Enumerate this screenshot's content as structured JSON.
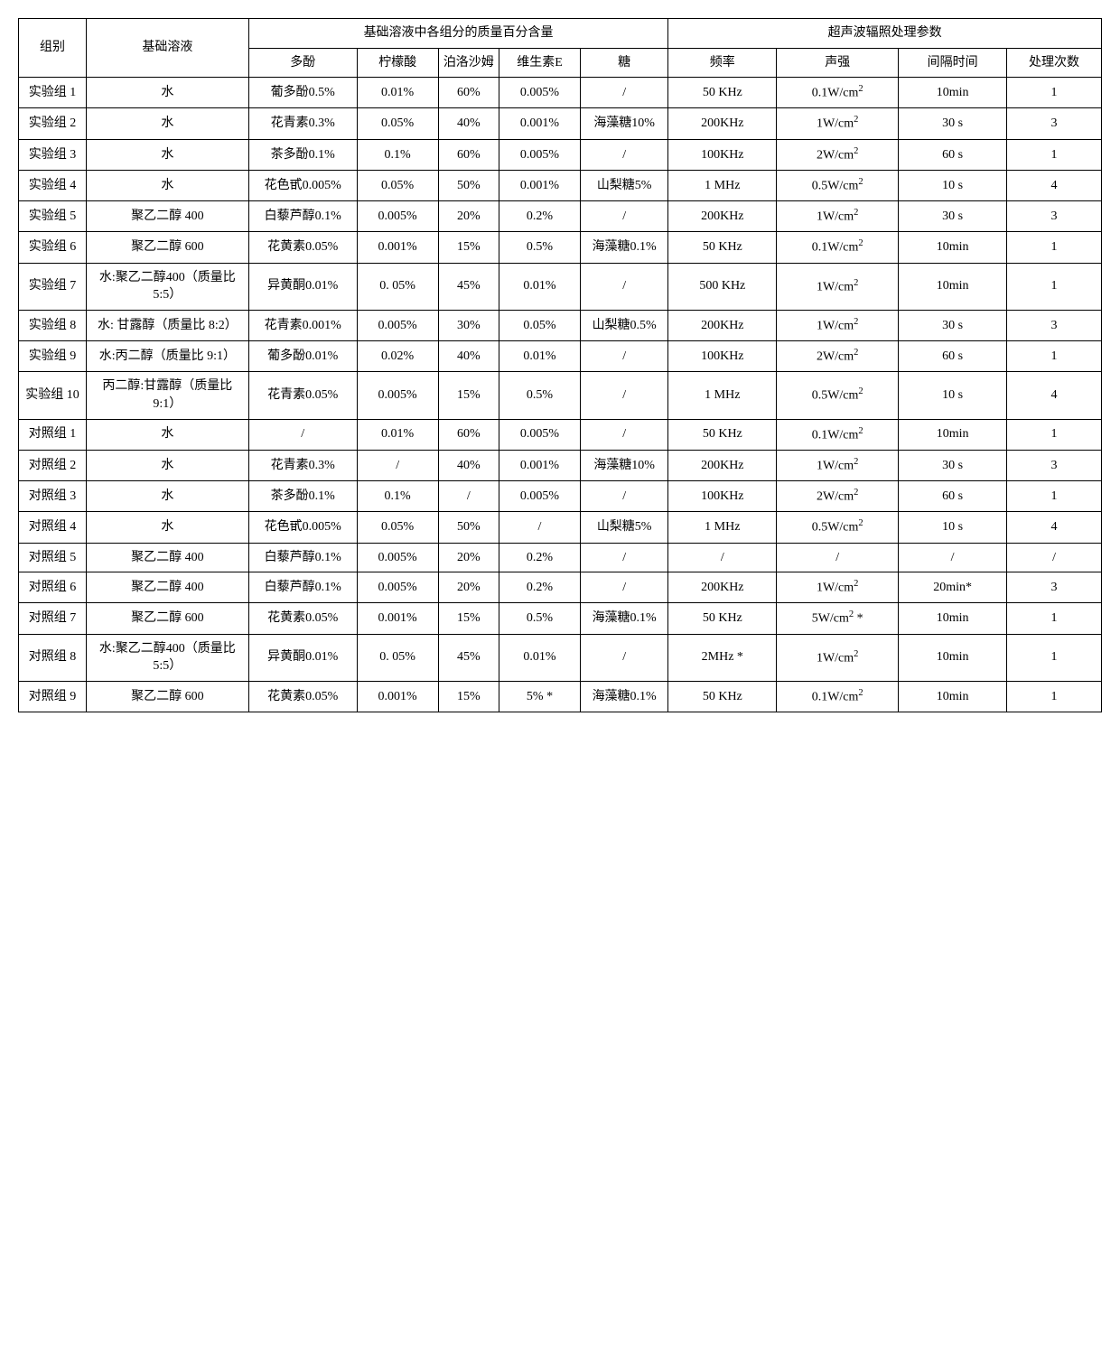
{
  "header": {
    "group": "组别",
    "base": "基础溶液",
    "composition": "基础溶液中各组分的质量百分含量",
    "ultrasonic": "超声波辐照处理参数",
    "polyphenol": "多酚",
    "citric": "柠檬酸",
    "poloxamer": "泊洛沙姆",
    "vite": "维生素E",
    "sugar": "糖",
    "freq": "频率",
    "intensity": "声强",
    "interval": "间隔时间",
    "times": "处理次数"
  },
  "rows": [
    {
      "group": "实验组 1",
      "base": "水",
      "poly": "葡多酚0.5%",
      "citric": "0.01%",
      "polo": "60%",
      "vite": "0.005%",
      "sugar": "/",
      "freq": "50 KHz",
      "intens_v": "0.1",
      "intens_s": "",
      "interval": "10min",
      "times": "1"
    },
    {
      "group": "实验组 2",
      "base": "水",
      "poly": "花青素0.3%",
      "citric": "0.05%",
      "polo": "40%",
      "vite": "0.001%",
      "sugar": "海藻糖10%",
      "freq": "200KHz",
      "intens_v": "1",
      "intens_s": "",
      "interval": "30 s",
      "times": "3"
    },
    {
      "group": "实验组 3",
      "base": "水",
      "poly": "茶多酚0.1%",
      "citric": "0.1%",
      "polo": "60%",
      "vite": "0.005%",
      "sugar": "/",
      "freq": "100KHz",
      "intens_v": "2",
      "intens_s": "",
      "interval": "60 s",
      "times": "1"
    },
    {
      "group": "实验组 4",
      "base": "水",
      "poly": "花色甙0.005%",
      "citric": "0.05%",
      "polo": "50%",
      "vite": "0.001%",
      "sugar": "山梨糖5%",
      "freq": "1 MHz",
      "intens_v": "0.5",
      "intens_s": "",
      "interval": "10 s",
      "times": "4"
    },
    {
      "group": "实验组 5",
      "base": "聚乙二醇 400",
      "poly": "白藜芦醇0.1%",
      "citric": "0.005%",
      "polo": "20%",
      "vite": "0.2%",
      "sugar": "/",
      "freq": "200KHz",
      "intens_v": "1",
      "intens_s": "",
      "interval": "30 s",
      "times": "3"
    },
    {
      "group": "实验组 6",
      "base": "聚乙二醇 600",
      "poly": "花黄素0.05%",
      "citric": "0.001%",
      "polo": "15%",
      "vite": "0.5%",
      "sugar": "海藻糖0.1%",
      "freq": "50 KHz",
      "intens_v": "0.1",
      "intens_s": "",
      "interval": "10min",
      "times": "1"
    },
    {
      "group": "实验组 7",
      "base": "水:聚乙二醇400（质量比 5:5）",
      "poly": "异黄酮0.01%",
      "citric": "0. 05%",
      "polo": "45%",
      "vite": "0.01%",
      "sugar": "/",
      "freq": "500 KHz",
      "intens_v": "1",
      "intens_s": "",
      "interval": "10min",
      "times": "1"
    },
    {
      "group": "实验组 8",
      "base": "水: 甘露醇（质量比 8:2）",
      "poly": "花青素0.001%",
      "citric": "0.005%",
      "polo": "30%",
      "vite": "0.05%",
      "sugar": "山梨糖0.5%",
      "freq": "200KHz",
      "intens_v": "1",
      "intens_s": "",
      "interval": "30 s",
      "times": "3"
    },
    {
      "group": "实验组 9",
      "base": "水:丙二醇（质量比 9:1）",
      "poly": "葡多酚0.01%",
      "citric": "0.02%",
      "polo": "40%",
      "vite": "0.01%",
      "sugar": "/",
      "freq": "100KHz",
      "intens_v": "2",
      "intens_s": "",
      "interval": "60 s",
      "times": "1"
    },
    {
      "group": "实验组 10",
      "base": "丙二醇:甘露醇（质量比 9:1）",
      "poly": "花青素0.05%",
      "citric": "0.005%",
      "polo": "15%",
      "vite": "0.5%",
      "sugar": "/",
      "freq": "1 MHz",
      "intens_v": "0.5",
      "intens_s": "",
      "interval": "10 s",
      "times": "4"
    },
    {
      "group": "对照组 1",
      "base": "水",
      "poly": "/",
      "citric": "0.01%",
      "polo": "60%",
      "vite": "0.005%",
      "sugar": "/",
      "freq": "50 KHz",
      "intens_v": "0.1",
      "intens_s": "",
      "interval": "10min",
      "times": "1"
    },
    {
      "group": "对照组 2",
      "base": "水",
      "poly": "花青素0.3%",
      "citric": "/",
      "polo": "40%",
      "vite": "0.001%",
      "sugar": "海藻糖10%",
      "freq": "200KHz",
      "intens_v": "1",
      "intens_s": "",
      "interval": "30 s",
      "times": "3"
    },
    {
      "group": "对照组 3",
      "base": "水",
      "poly": "茶多酚0.1%",
      "citric": "0.1%",
      "polo": "/",
      "vite": "0.005%",
      "sugar": "/",
      "freq": "100KHz",
      "intens_v": "2",
      "intens_s": "",
      "interval": "60 s",
      "times": "1"
    },
    {
      "group": "对照组 4",
      "base": "水",
      "poly": "花色甙0.005%",
      "citric": "0.05%",
      "polo": "50%",
      "vite": "/",
      "sugar": "山梨糖5%",
      "freq": "1 MHz",
      "intens_v": "0.5",
      "intens_s": "",
      "interval": "10 s",
      "times": "4"
    },
    {
      "group": "对照组 5",
      "base": "聚乙二醇 400",
      "poly": "白藜芦醇0.1%",
      "citric": "0.005%",
      "polo": "20%",
      "vite": "0.2%",
      "sugar": "/",
      "freq": "/",
      "intens_plain": "/",
      "interval": "/",
      "times": "/"
    },
    {
      "group": "对照组 6",
      "base": "聚乙二醇 400",
      "poly": "白藜芦醇0.1%",
      "citric": "0.005%",
      "polo": "20%",
      "vite": "0.2%",
      "sugar": "/",
      "freq": "200KHz",
      "intens_v": "1",
      "intens_s": "",
      "interval": "20min*",
      "times": "3"
    },
    {
      "group": "对照组 7",
      "base": "聚乙二醇 600",
      "poly": "花黄素0.05%",
      "citric": "0.001%",
      "polo": "15%",
      "vite": "0.5%",
      "sugar": "海藻糖0.1%",
      "freq": "50 KHz",
      "intens_v": "5",
      "intens_s": " *",
      "interval": "10min",
      "times": "1"
    },
    {
      "group": "对照组 8",
      "base": "水:聚乙二醇400（质量比 5:5）",
      "poly": "异黄酮0.01%",
      "citric": "0. 05%",
      "polo": "45%",
      "vite": "0.01%",
      "sugar": "/",
      "freq": "2MHz *",
      "intens_v": "1",
      "intens_s": "",
      "interval": "10min",
      "times": "1"
    },
    {
      "group": "对照组 9",
      "base": "聚乙二醇 600",
      "poly": "花黄素0.05%",
      "citric": "0.001%",
      "polo": "15%",
      "vite": "5% *",
      "sugar": "海藻糖0.1%",
      "freq": "50 KHz",
      "intens_v": "0.1",
      "intens_s": "",
      "interval": "10min",
      "times": "1"
    }
  ],
  "style": {
    "background_color": "#ffffff",
    "border_color": "#000000",
    "font_size": 14,
    "font_family": "SimSun"
  }
}
